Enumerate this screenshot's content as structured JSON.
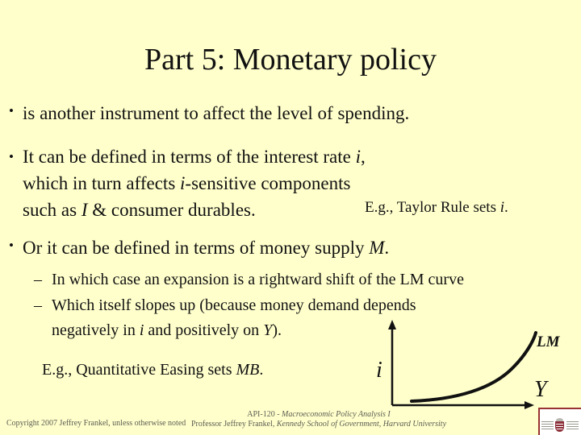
{
  "title": "Part 5: Monetary policy",
  "markers": {
    "bullet": "•",
    "dash": "–"
  },
  "bullets": {
    "b1": [
      {
        "t": "is another instrument to affect the level of spending."
      }
    ],
    "b2_l1": [
      {
        "t": "It can be defined in terms of the interest rate "
      },
      {
        "t": "i",
        "i": true
      },
      {
        "t": ","
      }
    ],
    "b2_l2": [
      {
        "t": "which in turn affects "
      },
      {
        "t": "i",
        "i": true
      },
      {
        "t": "-sensitive components"
      }
    ],
    "b2_l3": [
      {
        "t": "such as "
      },
      {
        "t": "I",
        "i": true
      },
      {
        "t": " & consumer durables."
      }
    ],
    "taylor_note": [
      {
        "t": "E.g., Taylor Rule sets "
      },
      {
        "t": "i",
        "i": true
      },
      {
        "t": "."
      }
    ],
    "b3": [
      {
        "t": "Or it can be defined in terms of money supply "
      },
      {
        "t": "M",
        "i": true
      },
      {
        "t": "."
      }
    ],
    "s1": [
      {
        "t": "In which case an expansion is a rightward shift of the LM curve"
      }
    ],
    "s2_l1": [
      {
        "t": "Which itself slopes up (because money demand depends"
      }
    ],
    "s2_l2": [
      {
        "t": "negatively in "
      },
      {
        "t": "i",
        "i": true
      },
      {
        "t": " and positively on "
      },
      {
        "t": "Y",
        "i": true
      },
      {
        "t": ")."
      }
    ],
    "qe_note": [
      {
        "t": "E.g., Quantitative Easing sets "
      },
      {
        "t": "MB",
        "i": true
      },
      {
        "t": "."
      }
    ]
  },
  "diagram": {
    "y_axis_label": "i",
    "x_axis_label": "Y",
    "curve_label": "LM",
    "description": "upward-sloping convex LM curve on i-Y axes"
  },
  "footer": {
    "left": "Copyright 2007 Jeffrey Frankel, unless otherwise noted",
    "center_line1": [
      {
        "t": "API-120 - "
      },
      {
        "t": "Macroeconomic Policy Analysis I",
        "i": true
      }
    ],
    "center_line2": [
      {
        "t": "Professor Jeffrey Frankel, "
      },
      {
        "t": "Kennedy School of Government, Harvard University",
        "i": true
      }
    ]
  },
  "colors": {
    "background": "#FFFFCC",
    "text": "#111111",
    "footer_text": "#5C5C52",
    "logo_border": "#993333",
    "logo_shield": "#8C2F39"
  }
}
